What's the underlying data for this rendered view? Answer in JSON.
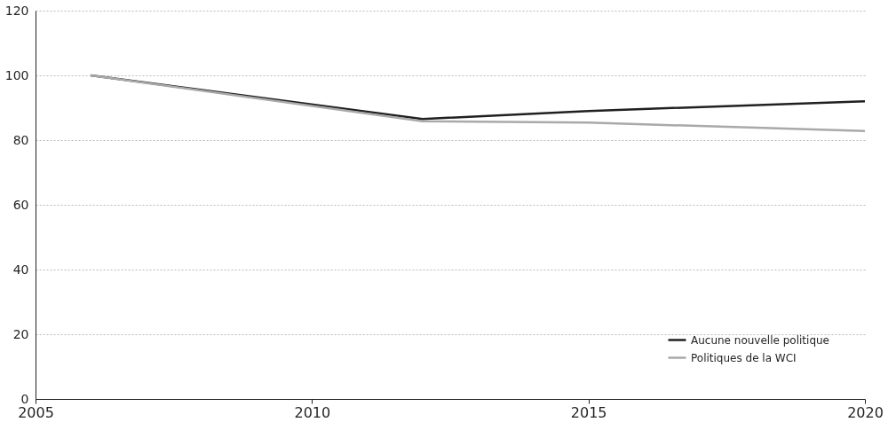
{
  "chart_data": {
    "type": "line",
    "x": [
      2006,
      2012,
      2015,
      2020
    ],
    "series": [
      {
        "name": "Aucune nouvelle politique",
        "color": "#231f20",
        "values": [
          100,
          86.5,
          89,
          92
        ]
      },
      {
        "name": "Politiques de la WCI",
        "color": "#a7a9ac",
        "values": [
          100,
          85.8,
          85.4,
          82.8
        ]
      }
    ],
    "xlim": [
      2005,
      2020
    ],
    "xticks": [
      2005,
      2010,
      2015,
      2020
    ],
    "ylim": [
      0,
      120
    ],
    "yticks": [
      0,
      20,
      40,
      60,
      80,
      100,
      120
    ],
    "grid": "y",
    "legend": "bottom right",
    "marker": "none",
    "line_style": "solid"
  }
}
